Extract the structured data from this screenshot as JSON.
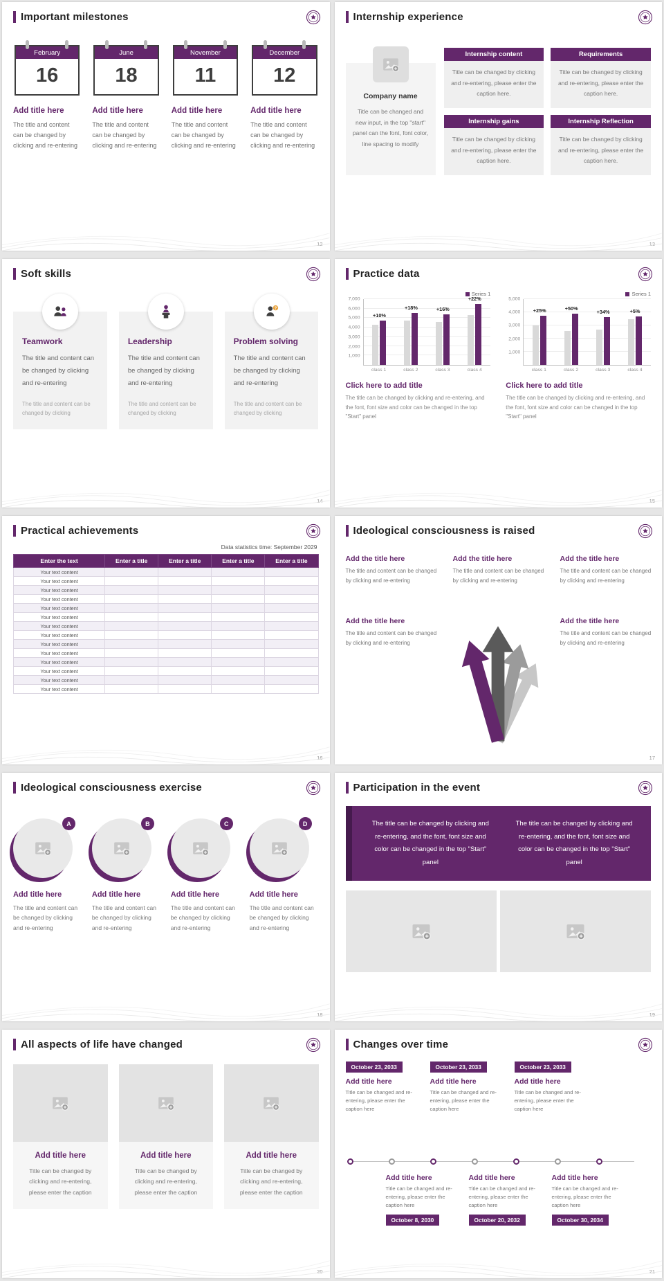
{
  "theme": {
    "accent": "#63276b",
    "accent_dark": "#451a4d",
    "baseline_bar": "#d9d9d9",
    "panel_gray": "#f2f2f2"
  },
  "slides": [
    {
      "title": "Important milestones",
      "page": "12",
      "milestones": [
        {
          "month": "February",
          "day": "16",
          "item_title": "Add title here",
          "body": "The title and content can be changed by clicking and re-entering"
        },
        {
          "month": "June",
          "day": "18",
          "item_title": "Add title here",
          "body": "The title and content can be changed by clicking and re-entering"
        },
        {
          "month": "November",
          "day": "11",
          "item_title": "Add title here",
          "body": "The title and content can be changed by clicking and re-entering"
        },
        {
          "month": "December",
          "day": "12",
          "item_title": "Add title here",
          "body": "The title and content can be changed by clicking and re-entering"
        }
      ]
    },
    {
      "title": "Internship experience",
      "page": "13",
      "company_name": "Company name",
      "company_body": "Title can be changed and new input, in the top \"start\" panel can the font, font color, line spacing to modify",
      "boxes": [
        {
          "box_title": "Internship content",
          "body": "Title can be changed by clicking and re-entering, please enter the caption here."
        },
        {
          "box_title": "Requirements",
          "body": "Title can be changed by clicking and re-entering, please enter the caption here."
        },
        {
          "box_title": "Internship gains",
          "body": "Title can be changed by clicking and re-entering, please enter the caption here."
        },
        {
          "box_title": "Internship Reflection",
          "body": "Title can be changed by clicking and re-entering, please enter the caption here."
        }
      ]
    },
    {
      "title": "Soft skills",
      "page": "14",
      "skills": [
        {
          "name": "Teamwork",
          "body": "The title and content can be changed by clicking and re-entering",
          "footer": "The title and content can be changed by clicking"
        },
        {
          "name": "Leadership",
          "body": "The title and content can be changed by clicking and re-entering",
          "footer": "The title and content can be changed by clicking"
        },
        {
          "name": "Problem solving",
          "body": "The title and content can be changed by clicking and re-entering",
          "footer": "The title and content can be changed by clicking"
        }
      ]
    },
    {
      "title": "Practice data",
      "page": "15"
    },
    {
      "title": "Practical achievements",
      "page": "16",
      "note": "Data statistics time: September 2029",
      "table": {
        "headers": [
          "Enter the text",
          "Enter a title",
          "Enter a title",
          "Enter a title",
          "Enter a title"
        ],
        "rows": [
          "Your text content",
          "Your text content",
          "Your text content",
          "Your text content",
          "Your text content",
          "Your text content",
          "Your text content",
          "Your text content",
          "Your text content",
          "Your text content",
          "Your text content",
          "Your text content",
          "Your text content",
          "Your text content"
        ]
      }
    },
    {
      "title": "Ideological consciousness is raised",
      "page": "17",
      "items": [
        {
          "item_title": "Add the title here",
          "body": "The title and content can be changed by clicking and re-entering"
        },
        {
          "item_title": "Add the title here",
          "body": "The title and content can be changed by clicking and re-entering"
        },
        {
          "item_title": "Add the title here",
          "body": "The title and content can be changed by clicking and re-entering"
        },
        {
          "item_title": "Add the title here",
          "body": "The title and content can be changed by clicking and re-entering"
        },
        {
          "item_title": "Add the title here",
          "body": "The title and content can be changed by clicking and re-entering"
        }
      ]
    },
    {
      "title": "Ideological consciousness exercise",
      "page": "18",
      "items": [
        {
          "letter": "A",
          "item_title": "Add title here",
          "body": "The title and content can be changed by clicking and re-entering"
        },
        {
          "letter": "B",
          "item_title": "Add title here",
          "body": "The title and content can be changed by clicking and re-entering"
        },
        {
          "letter": "C",
          "item_title": "Add title here",
          "body": "The title and content can be changed by clicking and re-entering"
        },
        {
          "letter": "D",
          "item_title": "Add title here",
          "body": "The title and content can be changed by clicking and re-entering"
        }
      ]
    },
    {
      "title": "Participation in the event",
      "page": "19",
      "banner_left": "The title can be changed by clicking and re-entering, and the font, font size and color can be changed in the top \"Start\" panel",
      "banner_right": "The title can be changed by clicking and re-entering, and the font, font size and color can be changed in the top \"Start\" panel"
    },
    {
      "title": "All aspects of life have changed",
      "page": "20",
      "cards": [
        {
          "item_title": "Add title here",
          "body": "Title can be changed by clicking and re-entering, please enter the caption"
        },
        {
          "item_title": "Add title here",
          "body": "Title can be changed by clicking and re-entering, please enter the caption"
        },
        {
          "item_title": "Add title here",
          "body": "Title can be changed by clicking and re-entering, please enter the caption"
        }
      ]
    },
    {
      "title": "Changes over time",
      "page": "21",
      "top_items": [
        {
          "date": "October 23, 2033",
          "item_title": "Add title here",
          "body": "Title can be changed and re-entering, please enter the caption here"
        },
        {
          "date": "October 23, 2033",
          "item_title": "Add title here",
          "body": "Title can be changed and re-entering, please enter the caption here"
        },
        {
          "date": "October 23, 2033",
          "item_title": "Add title here",
          "body": "Title can be changed and re-entering, please enter the caption here"
        }
      ],
      "bottom_items": [
        {
          "date": "October 8, 2030",
          "item_title": "Add title here",
          "body": "Title can be changed and re-entering, please enter the caption here"
        },
        {
          "date": "October 20, 2032",
          "item_title": "Add title here",
          "body": "Title can be changed and re-entering, please enter the caption here"
        },
        {
          "date": "October 30, 2034",
          "item_title": "Add title here",
          "body": "Title can be changed and re-entering, please enter the caption here"
        }
      ]
    }
  ],
  "chart_data": [
    {
      "type": "bar",
      "title": "Click here to add title",
      "caption": "The title can be changed by clicking and re-entering, and the font, font size and color can be changed in the top \"Start\" panel",
      "legend": [
        "Series 1"
      ],
      "legend_position": "top-right",
      "grid": true,
      "categories": [
        "class 1",
        "class 2",
        "class 3",
        "class 4"
      ],
      "yticks": [
        7000,
        6000,
        5000,
        4000,
        3000,
        2000,
        1000
      ],
      "ylim": [
        0,
        7000
      ],
      "series": [
        {
          "color": "#d9d9d9",
          "values": [
            4300,
            4700,
            4600,
            5300
          ]
        },
        {
          "name": "Series 1",
          "color": "#63276b",
          "values": [
            4750,
            5550,
            5350,
            6450
          ]
        }
      ],
      "bar_labels": [
        "+10%",
        "+18%",
        "+16%",
        "+22%"
      ]
    },
    {
      "type": "bar",
      "title": "Click here to add title",
      "caption": "The title can be changed by clicking and re-entering, and the font, font size and color can be changed in the top \"Start\" panel",
      "legend": [
        "Series 1"
      ],
      "legend_position": "top-right",
      "grid": true,
      "categories": [
        "class 1",
        "class 2",
        "class 3",
        "class 4"
      ],
      "yticks": [
        5000,
        4000,
        3000,
        2000,
        1000
      ],
      "ylim": [
        0,
        5000
      ],
      "series": [
        {
          "color": "#d9d9d9",
          "values": [
            3000,
            2600,
            2700,
            3500
          ]
        },
        {
          "name": "Series 1",
          "color": "#63276b",
          "values": [
            3750,
            3900,
            3620,
            3680
          ]
        }
      ],
      "bar_labels": [
        "+25%",
        "+50%",
        "+34%",
        "+5%"
      ]
    }
  ]
}
